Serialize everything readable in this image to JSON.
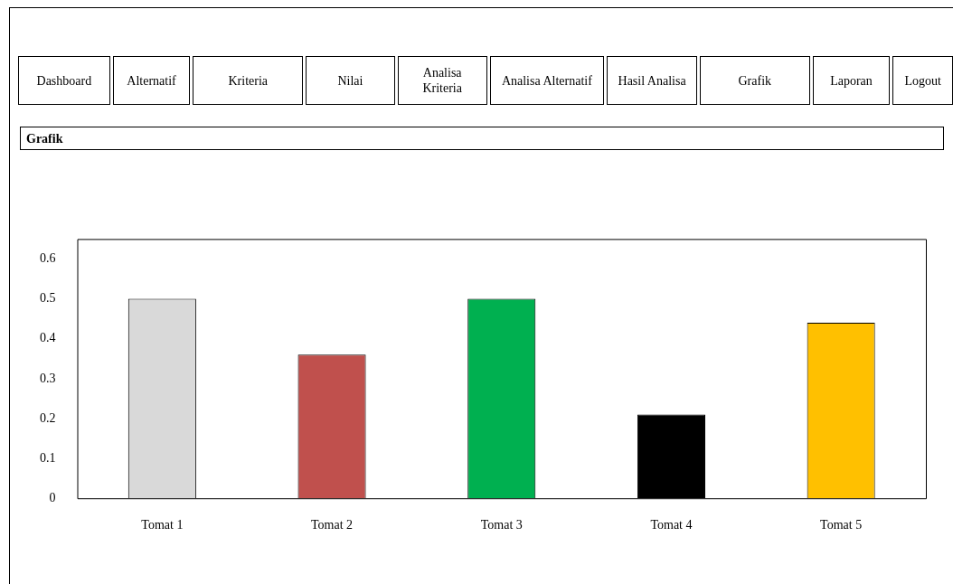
{
  "chart_data": [
    {
      "type": "other",
      "annotations": [
        "Dashboard",
        "Alternatif",
        "Kriteria",
        "Nilai",
        "Analisa Kriteria",
        "Analisa Alternatif",
        "Hasil Analisa",
        "Grafik",
        "Laporan",
        "Logout"
      ]
    },
    {
      "type": "bar",
      "title": "Grafik",
      "categories": [
        "Tomat 1",
        "Tomat 2",
        "Tomat 3",
        "Tomat 4",
        "Tomat 5"
      ],
      "values": [
        0.5,
        0.36,
        0.5,
        0.21,
        0.44
      ],
      "colors": [
        "#d9d9d9",
        "#c0504d",
        "#00b050",
        "#000000",
        "#ffc000"
      ],
      "ylim": [
        0,
        0.65
      ],
      "yticks": [
        0,
        0.1,
        0.2,
        0.3,
        0.4,
        0.5,
        0.6
      ],
      "grid": false,
      "legend": false
    }
  ]
}
